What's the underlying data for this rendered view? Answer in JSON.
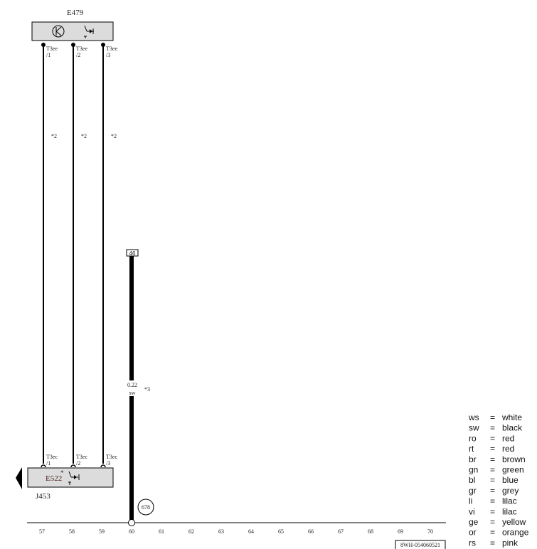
{
  "components": {
    "top": {
      "label": "E479",
      "icons": [
        "transistor-icon",
        "switch-diode-icon"
      ]
    },
    "bottom": {
      "label": "E522",
      "marker": "*",
      "icons": [
        "switch-diode-icon"
      ],
      "parent": "J453"
    }
  },
  "wires": [
    {
      "top_pin": "T3ee",
      "top_pin_no": "/1",
      "bottom_pin": "T3ec",
      "bottom_pin_no": "/1",
      "note": "*2"
    },
    {
      "top_pin": "T3ee",
      "top_pin_no": "/2",
      "bottom_pin": "T3ec",
      "bottom_pin_no": "/2",
      "note": "*2"
    },
    {
      "top_pin": "T3ee",
      "top_pin_no": "/3",
      "bottom_pin": "T3ec",
      "bottom_pin_no": "/3",
      "note": "*2"
    }
  ],
  "ground_wire": {
    "from_ref": "46",
    "size": "0.22",
    "color": "sw",
    "note": "*3",
    "ground_point": "678"
  },
  "columns": [
    "57",
    "58",
    "59",
    "60",
    "61",
    "62",
    "63",
    "64",
    "65",
    "66",
    "67",
    "68",
    "69",
    "70"
  ],
  "doc_number": "8WH-054060521",
  "legend": [
    {
      "code": "ws",
      "eq": "=",
      "name": "white"
    },
    {
      "code": "sw",
      "eq": "=",
      "name": "black"
    },
    {
      "code": "ro",
      "eq": "=",
      "name": "red"
    },
    {
      "code": "rt",
      "eq": "=",
      "name": "red"
    },
    {
      "code": "br",
      "eq": "=",
      "name": "brown"
    },
    {
      "code": "gn",
      "eq": "=",
      "name": "green"
    },
    {
      "code": "bl",
      "eq": "=",
      "name": "blue"
    },
    {
      "code": "gr",
      "eq": "=",
      "name": "grey"
    },
    {
      "code": "li",
      "eq": "=",
      "name": "lilac"
    },
    {
      "code": "vi",
      "eq": "=",
      "name": "lilac"
    },
    {
      "code": "ge",
      "eq": "=",
      "name": "yellow"
    },
    {
      "code": "or",
      "eq": "=",
      "name": "orange"
    },
    {
      "code": "rs",
      "eq": "=",
      "name": "pink"
    }
  ],
  "colors": {
    "component_fill": "#dcdcdc",
    "line": "#000000"
  }
}
